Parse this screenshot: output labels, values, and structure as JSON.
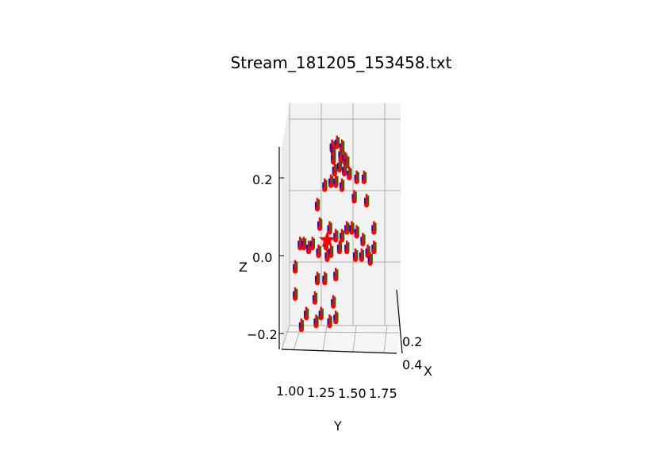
{
  "chart_data": {
    "type": "scatter",
    "projection": "3d",
    "title": "Stream_181205_153458.txt",
    "xlabel": "X",
    "ylabel": "Y",
    "zlabel": "Z",
    "x_ticks": [
      "0.2",
      "0.4"
    ],
    "y_ticks": [
      "1.00",
      "1.25",
      "1.50",
      "1.75"
    ],
    "z_ticks": [
      "0.2",
      "0.0",
      "−0.2"
    ],
    "grid": true,
    "colors": {
      "point": "#ff0000",
      "x_axis_marker": "#ff0000",
      "y_axis_marker": "#008000",
      "z_axis_marker": "#0000ff",
      "origin_marker": "#ff0000"
    },
    "origin_marker": "star",
    "points": [
      {
        "y": 1.32,
        "z": 0.27
      },
      {
        "y": 1.33,
        "z": 0.26
      },
      {
        "y": 1.36,
        "z": 0.28
      },
      {
        "y": 1.4,
        "z": 0.27
      },
      {
        "y": 1.33,
        "z": 0.24
      },
      {
        "y": 1.39,
        "z": 0.25
      },
      {
        "y": 1.42,
        "z": 0.24
      },
      {
        "y": 1.44,
        "z": 0.23
      },
      {
        "y": 1.34,
        "z": 0.21
      },
      {
        "y": 1.38,
        "z": 0.22
      },
      {
        "y": 1.42,
        "z": 0.21
      },
      {
        "y": 1.46,
        "z": 0.2
      },
      {
        "y": 1.26,
        "z": 0.17
      },
      {
        "y": 1.31,
        "z": 0.18
      },
      {
        "y": 1.35,
        "z": 0.18
      },
      {
        "y": 1.4,
        "z": 0.17
      },
      {
        "y": 1.52,
        "z": 0.19
      },
      {
        "y": 1.58,
        "z": 0.19
      },
      {
        "y": 1.5,
        "z": 0.14
      },
      {
        "y": 1.6,
        "z": 0.13
      },
      {
        "y": 1.2,
        "z": 0.12
      },
      {
        "y": 1.22,
        "z": 0.07
      },
      {
        "y": 1.3,
        "z": 0.06
      },
      {
        "y": 1.35,
        "z": 0.04
      },
      {
        "y": 1.4,
        "z": 0.04
      },
      {
        "y": 1.44,
        "z": 0.06
      },
      {
        "y": 1.48,
        "z": 0.06
      },
      {
        "y": 1.52,
        "z": 0.05
      },
      {
        "y": 1.57,
        "z": 0.03
      },
      {
        "y": 1.66,
        "z": 0.06
      },
      {
        "y": 1.27,
        "z": 0.02
      },
      {
        "y": 1.38,
        "z": 0.01
      },
      {
        "y": 1.44,
        "z": 0.01
      },
      {
        "y": 1.61,
        "z": 0.0
      },
      {
        "y": 1.66,
        "z": 0.01
      },
      {
        "y": 1.06,
        "z": 0.02
      },
      {
        "y": 1.09,
        "z": 0.02
      },
      {
        "y": 1.13,
        "z": 0.01
      },
      {
        "y": 1.16,
        "z": 0.02
      },
      {
        "y": 1.21,
        "z": 0.0
      },
      {
        "y": 1.28,
        "z": -0.01
      },
      {
        "y": 1.31,
        "z": 0.0
      },
      {
        "y": 1.51,
        "z": -0.01
      },
      {
        "y": 1.56,
        "z": -0.01
      },
      {
        "y": 1.63,
        "z": -0.02
      },
      {
        "y": 1.02,
        "z": -0.04
      },
      {
        "y": 1.26,
        "z": -0.07
      },
      {
        "y": 1.35,
        "z": -0.06
      },
      {
        "y": 1.2,
        "z": -0.07
      },
      {
        "y": 1.02,
        "z": -0.11
      },
      {
        "y": 1.18,
        "z": -0.12
      },
      {
        "y": 1.33,
        "z": -0.13
      },
      {
        "y": 1.11,
        "z": -0.16
      },
      {
        "y": 1.23,
        "z": -0.16
      },
      {
        "y": 1.07,
        "z": -0.19
      },
      {
        "y": 1.19,
        "z": -0.18
      },
      {
        "y": 1.3,
        "z": -0.18
      },
      {
        "y": 1.35,
        "z": -0.17
      }
    ],
    "origin": {
      "y": 1.28,
      "z": 0.04
    }
  }
}
